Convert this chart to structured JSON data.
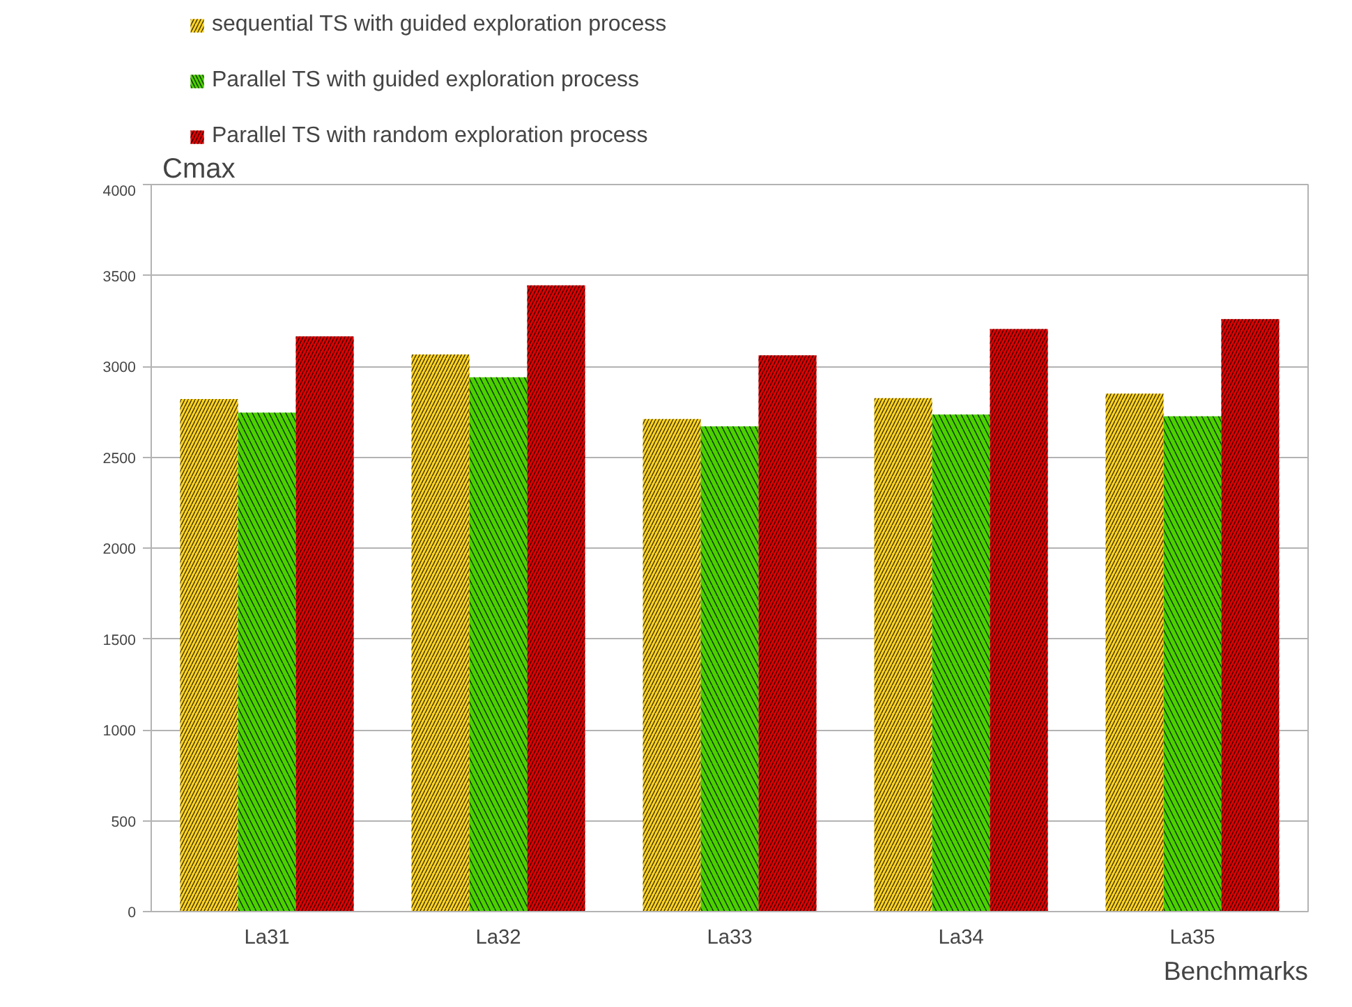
{
  "chart_data": {
    "type": "bar",
    "xlabel": "Benchmarks",
    "ylabel": "Cmax",
    "categories": [
      "La31",
      "La32",
      "La33",
      "La34",
      "La35"
    ],
    "series": [
      {
        "name": "sequential TS with guided exploration process",
        "color": "#ffd320",
        "values": [
          2820,
          3065,
          2710,
          2825,
          2850
        ]
      },
      {
        "name": "Parallel TS with guided exploration process",
        "color": "#4bd100",
        "values": [
          2745,
          2940,
          2670,
          2735,
          2725
        ]
      },
      {
        "name": "Parallel TS with random exploration process",
        "color": "#e00000",
        "values": [
          3165,
          3445,
          3060,
          3205,
          3260
        ]
      }
    ],
    "ylim": [
      0,
      4000
    ],
    "yticks": [
      0,
      500,
      1000,
      1500,
      2000,
      2500,
      3000,
      3500,
      4000
    ],
    "grid": "y",
    "legend": "top"
  }
}
